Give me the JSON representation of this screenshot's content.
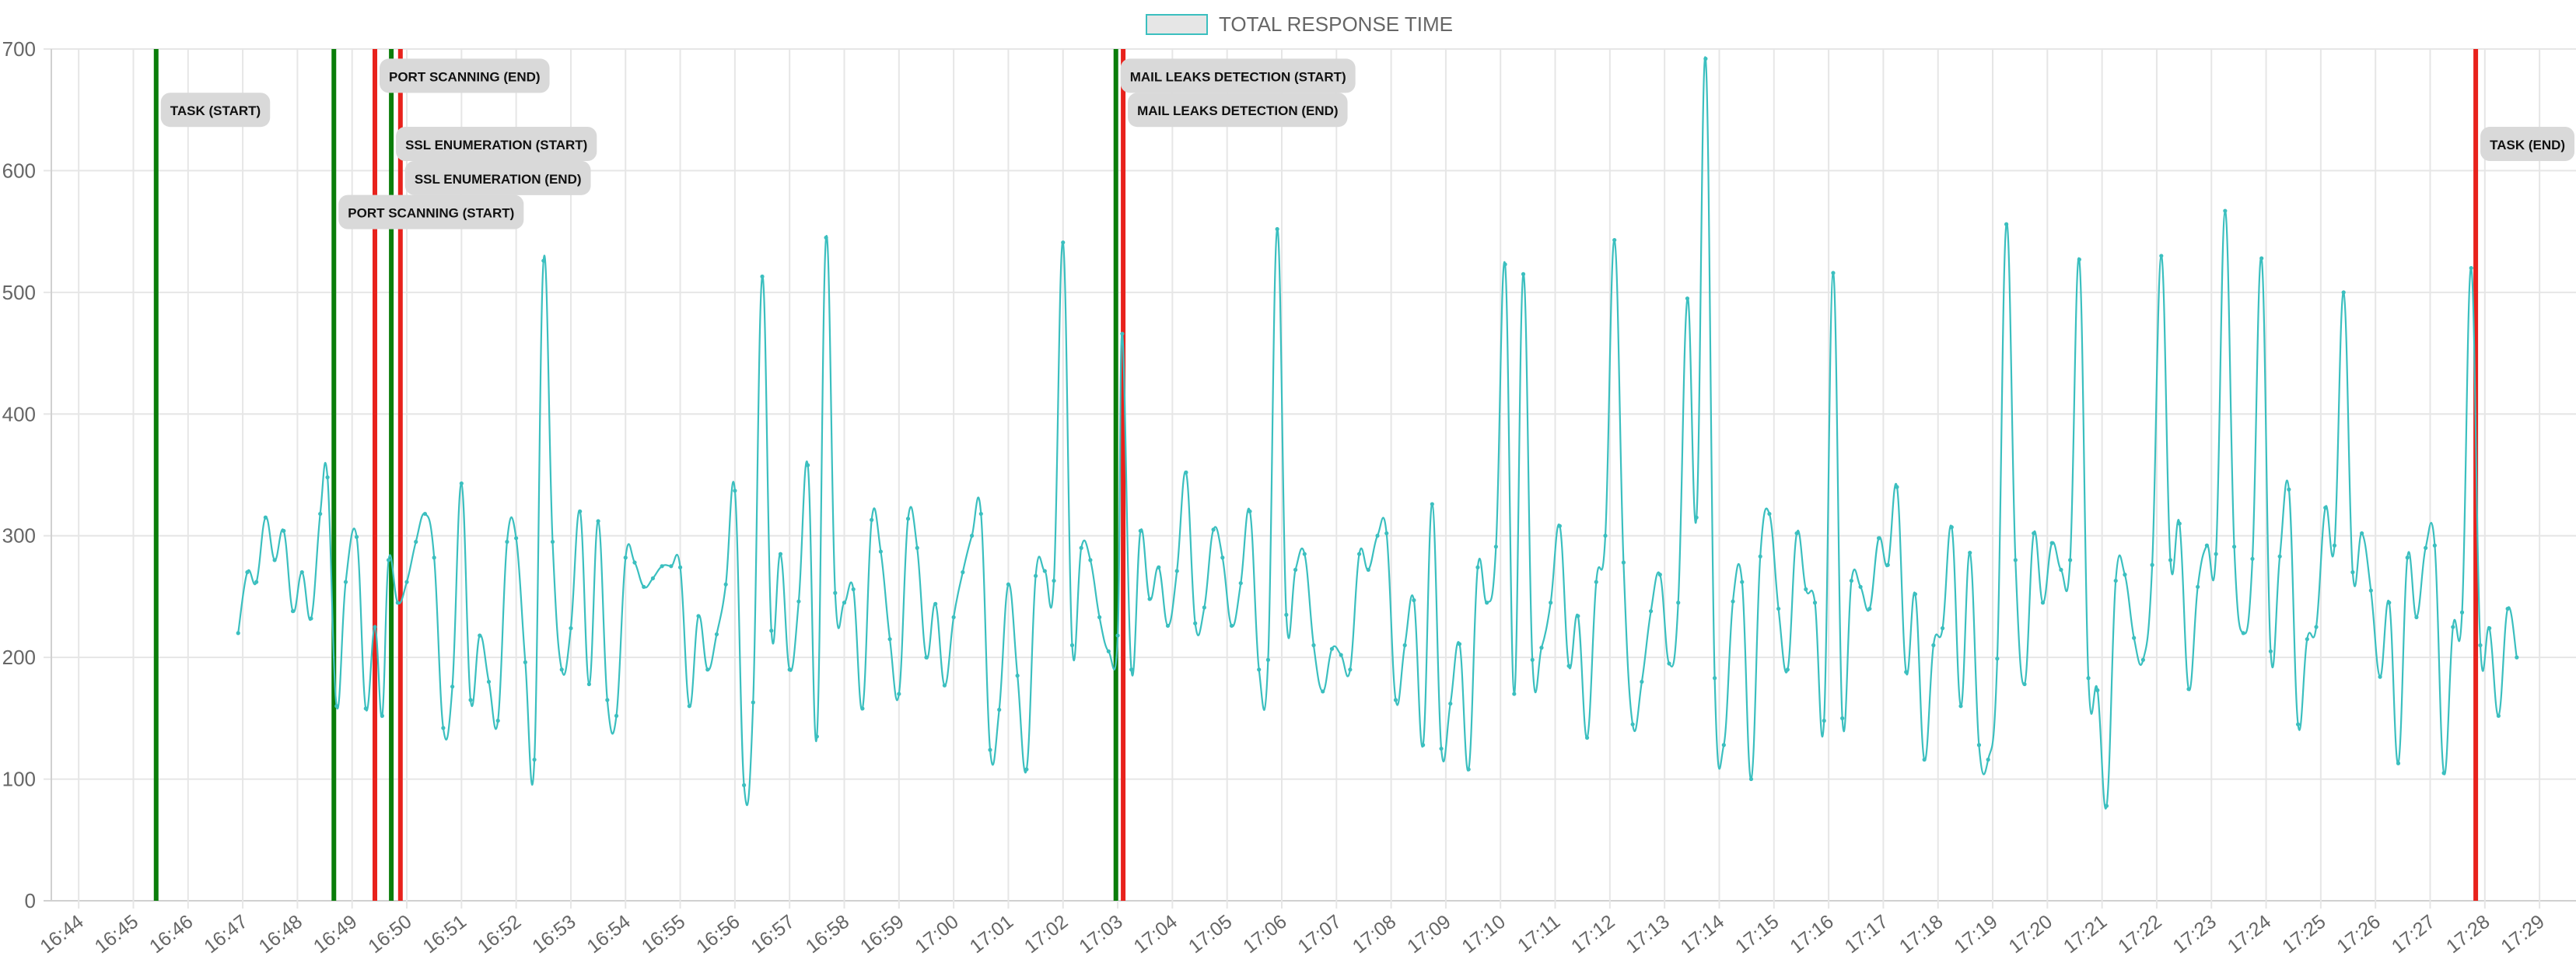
{
  "legend": {
    "label": "TOTAL RESPONSE TIME",
    "swatch_fill": "#e6e6e6",
    "swatch_border": "#3bbfbf"
  },
  "colors": {
    "line": "#3bbfbf",
    "start_marker": "#0a7d0a",
    "end_marker": "#e8221c",
    "grid": "#e6e6e6",
    "label_bg": "#d9d9d9"
  },
  "chart_data": {
    "type": "line",
    "title": "",
    "xlabel": "",
    "ylabel": "",
    "ylim": [
      0,
      700
    ],
    "yticks": [
      0,
      100,
      200,
      300,
      400,
      500,
      600,
      700
    ],
    "xlim": [
      "16:43:30",
      "17:29:40"
    ],
    "xticks": [
      "16:44",
      "16:45",
      "16:46",
      "16:47",
      "16:48",
      "16:49",
      "16:50",
      "16:51",
      "16:52",
      "16:53",
      "16:54",
      "16:55",
      "16:56",
      "16:57",
      "16:58",
      "16:59",
      "17:00",
      "17:01",
      "17:02",
      "17:03",
      "17:04",
      "17:05",
      "17:06",
      "17:07",
      "17:08",
      "17:09",
      "17:10",
      "17:11",
      "17:12",
      "17:13",
      "17:14",
      "17:15",
      "17:16",
      "17:17",
      "17:18",
      "17:19",
      "17:20",
      "17:21",
      "17:22",
      "17:23",
      "17:24",
      "17:25",
      "17:26",
      "17:27",
      "17:28",
      "17:29"
    ],
    "grid": true,
    "legend_position": "top-center",
    "series": [
      {
        "name": "TOTAL RESPONSE TIME",
        "points": [
          [
            "16:46:55",
            220
          ],
          [
            "16:47:05",
            270
          ],
          [
            "16:47:15",
            262
          ],
          [
            "16:47:25",
            315
          ],
          [
            "16:47:35",
            280
          ],
          [
            "16:47:45",
            304
          ],
          [
            "16:47:55",
            238
          ],
          [
            "16:48:05",
            270
          ],
          [
            "16:48:15",
            232
          ],
          [
            "16:48:25",
            318
          ],
          [
            "16:48:33",
            348
          ],
          [
            "16:48:43",
            160
          ],
          [
            "16:48:53",
            262
          ],
          [
            "16:49:05",
            299
          ],
          [
            "16:49:15",
            158
          ],
          [
            "16:49:25",
            225
          ],
          [
            "16:49:33",
            152
          ],
          [
            "16:49:40",
            280
          ],
          [
            "16:49:50",
            245
          ],
          [
            "16:50:00",
            262
          ],
          [
            "16:50:10",
            295
          ],
          [
            "16:50:20",
            318
          ],
          [
            "16:50:30",
            282
          ],
          [
            "16:50:40",
            142
          ],
          [
            "16:50:50",
            176
          ],
          [
            "16:51:00",
            343
          ],
          [
            "16:51:10",
            165
          ],
          [
            "16:51:20",
            218
          ],
          [
            "16:51:30",
            180
          ],
          [
            "16:51:40",
            148
          ],
          [
            "16:51:50",
            295
          ],
          [
            "16:52:00",
            298
          ],
          [
            "16:52:10",
            196
          ],
          [
            "16:52:20",
            116
          ],
          [
            "16:52:30",
            526
          ],
          [
            "16:52:40",
            295
          ],
          [
            "16:52:50",
            190
          ],
          [
            "16:53:00",
            224
          ],
          [
            "16:53:10",
            320
          ],
          [
            "16:53:20",
            178
          ],
          [
            "16:53:30",
            312
          ],
          [
            "16:53:40",
            165
          ],
          [
            "16:53:50",
            152
          ],
          [
            "16:54:00",
            282
          ],
          [
            "16:54:10",
            278
          ],
          [
            "16:54:20",
            258
          ],
          [
            "16:54:30",
            265
          ],
          [
            "16:54:40",
            275
          ],
          [
            "16:54:50",
            275
          ],
          [
            "16:55:00",
            274
          ],
          [
            "16:55:10",
            160
          ],
          [
            "16:55:20",
            234
          ],
          [
            "16:55:30",
            190
          ],
          [
            "16:55:40",
            219
          ],
          [
            "16:55:50",
            260
          ],
          [
            "16:56:00",
            337
          ],
          [
            "16:56:10",
            95
          ],
          [
            "16:56:20",
            163
          ],
          [
            "16:56:30",
            513
          ],
          [
            "16:56:40",
            222
          ],
          [
            "16:56:50",
            285
          ],
          [
            "16:57:00",
            190
          ],
          [
            "16:57:10",
            246
          ],
          [
            "16:57:20",
            358
          ],
          [
            "16:57:30",
            135
          ],
          [
            "16:57:40",
            545
          ],
          [
            "16:57:50",
            253
          ],
          [
            "16:58:00",
            245
          ],
          [
            "16:58:10",
            256
          ],
          [
            "16:58:20",
            158
          ],
          [
            "16:58:30",
            313
          ],
          [
            "16:58:40",
            287
          ],
          [
            "16:58:50",
            215
          ],
          [
            "16:59:00",
            170
          ],
          [
            "16:59:10",
            314
          ],
          [
            "16:59:20",
            290
          ],
          [
            "16:59:30",
            200
          ],
          [
            "16:59:40",
            244
          ],
          [
            "16:59:50",
            177
          ],
          [
            "17:00:00",
            233
          ],
          [
            "17:00:10",
            270
          ],
          [
            "17:00:20",
            300
          ],
          [
            "17:00:30",
            318
          ],
          [
            "17:00:40",
            124
          ],
          [
            "17:00:50",
            157
          ],
          [
            "17:01:00",
            260
          ],
          [
            "17:01:10",
            185
          ],
          [
            "17:01:20",
            108
          ],
          [
            "17:01:30",
            267
          ],
          [
            "17:01:40",
            271
          ],
          [
            "17:01:50",
            263
          ],
          [
            "17:02:00",
            541
          ],
          [
            "17:02:10",
            210
          ],
          [
            "17:02:20",
            290
          ],
          [
            "17:02:30",
            280
          ],
          [
            "17:02:40",
            233
          ],
          [
            "17:02:50",
            205
          ],
          [
            "17:03:00",
            218
          ],
          [
            "17:03:05",
            466
          ],
          [
            "17:03:15",
            190
          ],
          [
            "17:03:25",
            304
          ],
          [
            "17:03:35",
            248
          ],
          [
            "17:03:45",
            274
          ],
          [
            "17:03:55",
            226
          ],
          [
            "17:04:05",
            271
          ],
          [
            "17:04:15",
            352
          ],
          [
            "17:04:25",
            228
          ],
          [
            "17:04:35",
            241
          ],
          [
            "17:04:45",
            305
          ],
          [
            "17:04:55",
            282
          ],
          [
            "17:05:05",
            226
          ],
          [
            "17:05:15",
            261
          ],
          [
            "17:05:25",
            320
          ],
          [
            "17:05:35",
            190
          ],
          [
            "17:05:45",
            198
          ],
          [
            "17:05:55",
            552
          ],
          [
            "17:06:05",
            235
          ],
          [
            "17:06:15",
            272
          ],
          [
            "17:06:25",
            285
          ],
          [
            "17:06:35",
            210
          ],
          [
            "17:06:45",
            172
          ],
          [
            "17:06:55",
            207
          ],
          [
            "17:07:05",
            202
          ],
          [
            "17:07:15",
            190
          ],
          [
            "17:07:25",
            285
          ],
          [
            "17:07:35",
            272
          ],
          [
            "17:07:45",
            300
          ],
          [
            "17:07:55",
            302
          ],
          [
            "17:08:05",
            165
          ],
          [
            "17:08:15",
            210
          ],
          [
            "17:08:25",
            247
          ],
          [
            "17:08:35",
            128
          ],
          [
            "17:08:45",
            326
          ],
          [
            "17:08:55",
            125
          ],
          [
            "17:09:05",
            162
          ],
          [
            "17:09:15",
            211
          ],
          [
            "17:09:25",
            108
          ],
          [
            "17:09:35",
            274
          ],
          [
            "17:09:45",
            245
          ],
          [
            "17:09:55",
            291
          ],
          [
            "17:10:05",
            523
          ],
          [
            "17:10:15",
            170
          ],
          [
            "17:10:25",
            515
          ],
          [
            "17:10:35",
            198
          ],
          [
            "17:10:45",
            208
          ],
          [
            "17:10:55",
            245
          ],
          [
            "17:11:05",
            308
          ],
          [
            "17:11:15",
            193
          ],
          [
            "17:11:25",
            234
          ],
          [
            "17:11:35",
            134
          ],
          [
            "17:11:45",
            262
          ],
          [
            "17:11:55",
            300
          ],
          [
            "17:12:05",
            543
          ],
          [
            "17:12:15",
            278
          ],
          [
            "17:12:25",
            145
          ],
          [
            "17:12:35",
            180
          ],
          [
            "17:12:45",
            238
          ],
          [
            "17:12:55",
            268
          ],
          [
            "17:13:05",
            195
          ],
          [
            "17:13:15",
            245
          ],
          [
            "17:13:25",
            495
          ],
          [
            "17:13:35",
            315
          ],
          [
            "17:13:45",
            692
          ],
          [
            "17:13:55",
            183
          ],
          [
            "17:14:05",
            128
          ],
          [
            "17:14:15",
            246
          ],
          [
            "17:14:25",
            262
          ],
          [
            "17:14:35",
            100
          ],
          [
            "17:14:45",
            283
          ],
          [
            "17:14:55",
            318
          ],
          [
            "17:15:05",
            240
          ],
          [
            "17:15:15",
            190
          ],
          [
            "17:15:25",
            302
          ],
          [
            "17:15:35",
            256
          ],
          [
            "17:15:45",
            245
          ],
          [
            "17:15:55",
            148
          ],
          [
            "17:16:05",
            516
          ],
          [
            "17:16:15",
            150
          ],
          [
            "17:16:25",
            263
          ],
          [
            "17:16:35",
            258
          ],
          [
            "17:16:45",
            240
          ],
          [
            "17:16:55",
            298
          ],
          [
            "17:17:05",
            276
          ],
          [
            "17:17:15",
            340
          ],
          [
            "17:17:25",
            188
          ],
          [
            "17:17:35",
            252
          ],
          [
            "17:17:45",
            116
          ],
          [
            "17:17:55",
            210
          ],
          [
            "17:18:05",
            224
          ],
          [
            "17:18:15",
            307
          ],
          [
            "17:18:25",
            160
          ],
          [
            "17:18:35",
            286
          ],
          [
            "17:18:45",
            128
          ],
          [
            "17:18:55",
            116
          ],
          [
            "17:19:05",
            199
          ],
          [
            "17:19:15",
            556
          ],
          [
            "17:19:25",
            280
          ],
          [
            "17:19:35",
            178
          ],
          [
            "17:19:45",
            302
          ],
          [
            "17:19:55",
            245
          ],
          [
            "17:20:05",
            294
          ],
          [
            "17:20:15",
            272
          ],
          [
            "17:20:25",
            280
          ],
          [
            "17:20:35",
            527
          ],
          [
            "17:20:45",
            183
          ],
          [
            "17:20:55",
            173
          ],
          [
            "17:21:05",
            78
          ],
          [
            "17:21:15",
            263
          ],
          [
            "17:21:25",
            268
          ],
          [
            "17:21:35",
            216
          ],
          [
            "17:21:45",
            198
          ],
          [
            "17:21:55",
            276
          ],
          [
            "17:22:05",
            530
          ],
          [
            "17:22:15",
            280
          ],
          [
            "17:22:25",
            310
          ],
          [
            "17:22:35",
            174
          ],
          [
            "17:22:45",
            258
          ],
          [
            "17:22:55",
            292
          ],
          [
            "17:23:05",
            285
          ],
          [
            "17:23:15",
            567
          ],
          [
            "17:23:25",
            291
          ],
          [
            "17:23:35",
            220
          ],
          [
            "17:23:45",
            281
          ],
          [
            "17:23:55",
            528
          ],
          [
            "17:24:05",
            205
          ],
          [
            "17:24:15",
            283
          ],
          [
            "17:24:25",
            338
          ],
          [
            "17:24:35",
            145
          ],
          [
            "17:24:45",
            215
          ],
          [
            "17:24:55",
            225
          ],
          [
            "17:25:05",
            323
          ],
          [
            "17:25:15",
            292
          ],
          [
            "17:25:25",
            500
          ],
          [
            "17:25:35",
            270
          ],
          [
            "17:25:45",
            302
          ],
          [
            "17:25:55",
            255
          ],
          [
            "17:26:05",
            184
          ],
          [
            "17:26:15",
            245
          ],
          [
            "17:26:25",
            113
          ],
          [
            "17:26:35",
            282
          ],
          [
            "17:26:45",
            233
          ],
          [
            "17:26:55",
            290
          ],
          [
            "17:27:05",
            292
          ],
          [
            "17:27:15",
            105
          ],
          [
            "17:27:25",
            225
          ],
          [
            "17:27:35",
            237
          ],
          [
            "17:27:45",
            520
          ],
          [
            "17:27:55",
            210
          ],
          [
            "17:28:05",
            224
          ],
          [
            "17:28:15",
            152
          ],
          [
            "17:28:25",
            240
          ],
          [
            "17:28:35",
            200
          ]
        ]
      }
    ],
    "markers": [
      {
        "time": "16:45:25",
        "label": "TASK (START)",
        "kind": "start",
        "label_y": 650
      },
      {
        "time": "16:48:40",
        "label": "PORT SCANNING (START)",
        "kind": "start",
        "label_y": 566
      },
      {
        "time": "16:49:25",
        "label": "PORT SCANNING (END)",
        "kind": "end",
        "label_y": 678
      },
      {
        "time": "16:49:43",
        "label": "SSL ENUMERATION (START)",
        "kind": "start",
        "label_y": 622
      },
      {
        "time": "16:49:53",
        "label": "SSL ENUMERATION (END)",
        "kind": "end",
        "label_y": 594
      },
      {
        "time": "17:02:58",
        "label": "MAIL LEAKS DETECTION (START)",
        "kind": "start",
        "label_y": 678
      },
      {
        "time": "17:03:06",
        "label": "MAIL LEAKS DETECTION (END)",
        "kind": "end",
        "label_y": 650
      },
      {
        "time": "17:27:50",
        "label": "TASK (END)",
        "kind": "end",
        "label_y": 622
      }
    ]
  }
}
